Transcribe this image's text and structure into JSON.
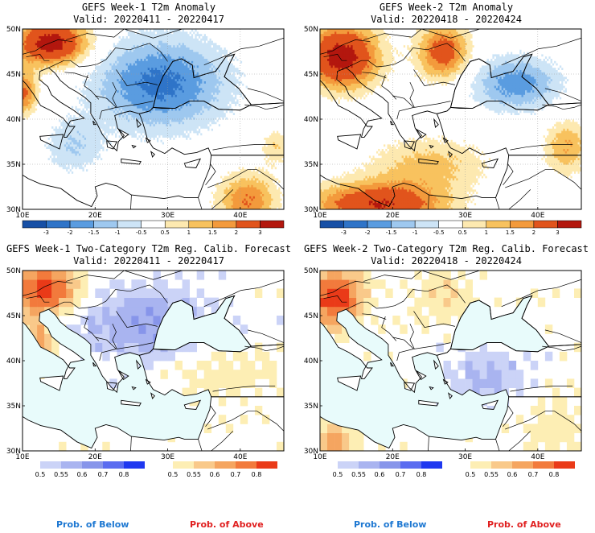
{
  "colors": {
    "sea": "#e8fbfb",
    "land_neutral": "#ffffff",
    "border": "#000000"
  },
  "panels": [
    {
      "id": "wk1-anom",
      "type": "anomaly",
      "title": "GEFS Week-1 T2m Anomaly",
      "subtitle": "Valid: 20220411 - 20220417",
      "pattern": "wk1"
    },
    {
      "id": "wk2-anom",
      "type": "anomaly",
      "title": "GEFS Week-2 T2m Anomaly",
      "subtitle": "Valid: 20220418 - 20220424",
      "pattern": "wk2"
    },
    {
      "id": "wk1-prob",
      "type": "probability",
      "title": "GEFS Week-1 Two-Category T2m Reg. Calib. Forecast",
      "subtitle": "Valid: 20220411 - 20220417",
      "pattern": "wk1p"
    },
    {
      "id": "wk2-prob",
      "type": "probability",
      "title": "GEFS Week-2 Two-Category T2m Reg. Calib. Forecast",
      "subtitle": "Valid: 20220418 - 20220424",
      "pattern": "wk2p"
    }
  ],
  "axes": {
    "lat_labels": [
      "50N",
      "45N",
      "40N",
      "35N",
      "30N"
    ],
    "lat_values": [
      50,
      45,
      40,
      35,
      30
    ],
    "lon_labels": [
      "10E",
      "20E",
      "30E",
      "40E"
    ],
    "lon_values": [
      10,
      20,
      30,
      40
    ],
    "lon_range": [
      10,
      46
    ],
    "lat_range": [
      30,
      50
    ]
  },
  "anomaly_legend": {
    "labels": [
      "-3",
      "-2",
      "-1.5",
      "-1",
      "-0.5",
      "0.5",
      "1",
      "1.5",
      "2",
      "3"
    ],
    "colors": [
      "#1750a6",
      "#2f74c8",
      "#5a9ce0",
      "#9ec8ef",
      "#cde4f6",
      "#ffffff",
      "#fde9b0",
      "#f8c25e",
      "#f39a3c",
      "#e1541c",
      "#b3170e"
    ]
  },
  "prob_legend": {
    "below_labels": [
      "0.5",
      "0.55",
      "0.6",
      "0.7",
      "0.8"
    ],
    "below_colors": [
      "#cbd3f7",
      "#a9b4f0",
      "#8795ea",
      "#5a6cf0",
      "#1f38f0"
    ],
    "above_labels": [
      "0.5",
      "0.55",
      "0.6",
      "0.7",
      "0.8"
    ],
    "above_colors": [
      "#fdeeb4",
      "#f9c98a",
      "#f5a560",
      "#f27a3c",
      "#ea3a18"
    ],
    "below_caption": "Prob. of Below",
    "above_caption": "Prob. of Above"
  }
}
